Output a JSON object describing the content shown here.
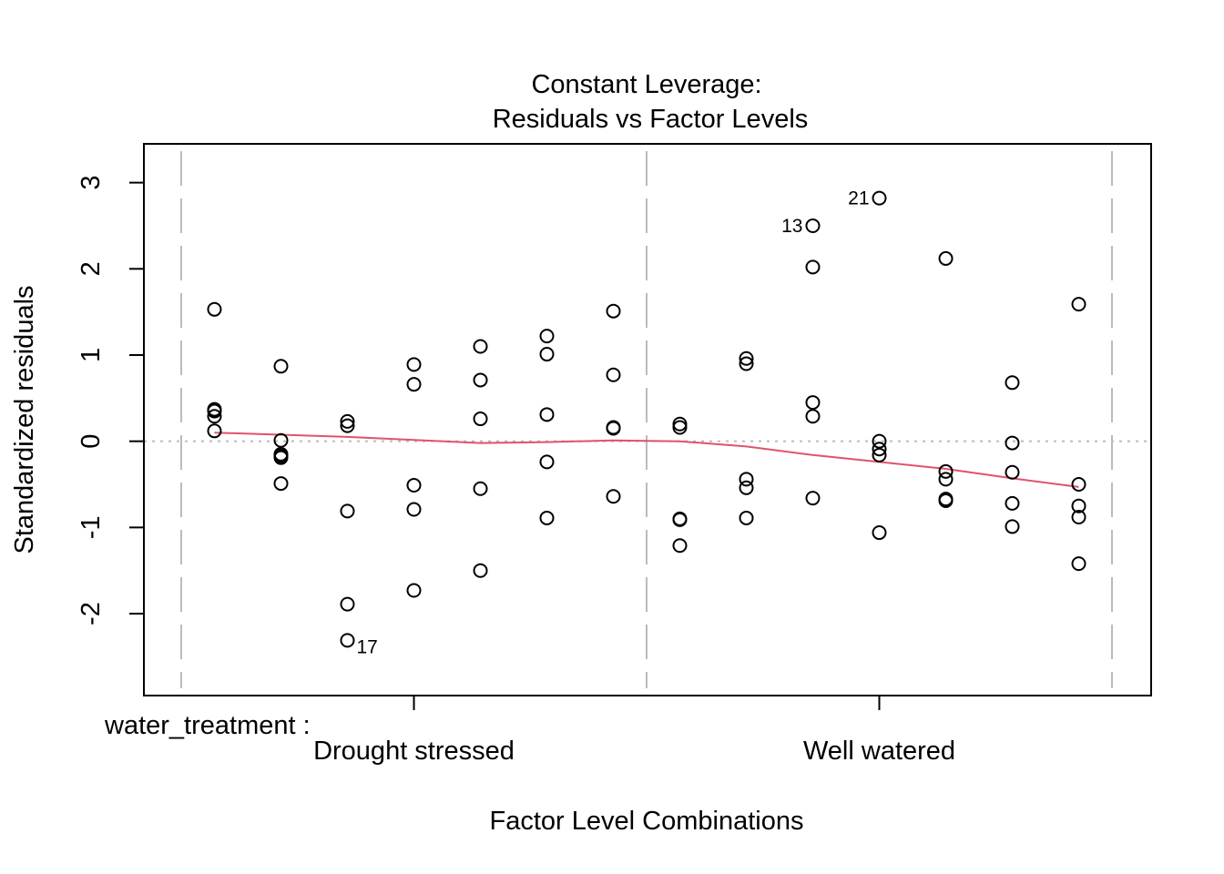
{
  "chart_data": {
    "type": "scatter",
    "title_line1": "Constant Leverage:",
    "title_line2": "Residuals vs Factor Levels",
    "xlabel": "Factor Level Combinations",
    "ylabel": "Standardized residuals",
    "factor_name": "water_treatment :",
    "ylim": [
      -2.95,
      3.45
    ],
    "y_ticks": [
      {
        "value": -2,
        "label": "-2"
      },
      {
        "value": -1,
        "label": "-1"
      },
      {
        "value": 0,
        "label": "0"
      },
      {
        "value": 1,
        "label": "1"
      },
      {
        "value": 2,
        "label": "2"
      },
      {
        "value": 3,
        "label": "3"
      }
    ],
    "factor_levels": [
      {
        "label": "Drought stressed"
      },
      {
        "label": "Well watered"
      }
    ],
    "groups": [
      {
        "level": 0,
        "position": 0.0714,
        "values": [
          1.53,
          0.37,
          0.35,
          0.29,
          0.12
        ]
      },
      {
        "level": 0,
        "position": 0.2143,
        "values": [
          0.87,
          0.01,
          -0.15,
          -0.17,
          -0.19,
          -0.49
        ]
      },
      {
        "level": 0,
        "position": 0.3571,
        "values": [
          0.23,
          0.18,
          -0.81,
          -1.89,
          -2.31
        ]
      },
      {
        "level": 0,
        "position": 0.5,
        "values": [
          0.89,
          0.66,
          -0.51,
          -0.79,
          -1.73
        ]
      },
      {
        "level": 0,
        "position": 0.6429,
        "values": [
          1.1,
          0.71,
          0.26,
          -0.55,
          -1.5
        ]
      },
      {
        "level": 0,
        "position": 0.7857,
        "values": [
          1.22,
          1.01,
          0.31,
          -0.24,
          -0.89
        ]
      },
      {
        "level": 0,
        "position": 0.9286,
        "values": [
          1.51,
          0.77,
          0.16,
          0.15,
          -0.64
        ]
      },
      {
        "level": 1,
        "position": 0.0714,
        "values": [
          0.2,
          0.16,
          -0.9,
          -0.91,
          -1.21
        ]
      },
      {
        "level": 1,
        "position": 0.2143,
        "values": [
          0.96,
          0.9,
          -0.44,
          -0.54,
          -0.89
        ]
      },
      {
        "level": 1,
        "position": 0.3571,
        "values": [
          2.5,
          2.02,
          0.45,
          0.29,
          -0.66
        ]
      },
      {
        "level": 1,
        "position": 0.5,
        "values": [
          2.82,
          0.0,
          -0.09,
          -0.16,
          -1.06
        ]
      },
      {
        "level": 1,
        "position": 0.6429,
        "values": [
          2.12,
          -0.35,
          -0.44,
          -0.67,
          -0.69
        ]
      },
      {
        "level": 1,
        "position": 0.7857,
        "values": [
          0.68,
          -0.02,
          -0.36,
          -0.72,
          -0.99
        ]
      },
      {
        "level": 1,
        "position": 0.9286,
        "values": [
          1.59,
          -0.5,
          -0.75,
          -0.88,
          -1.42
        ]
      }
    ],
    "point_labels": [
      {
        "text": "21",
        "level": 1,
        "position": 0.5,
        "y": 2.82,
        "side": "left"
      },
      {
        "text": "13",
        "level": 1,
        "position": 0.3571,
        "y": 2.5,
        "side": "left"
      },
      {
        "text": "17",
        "level": 0,
        "position": 0.3571,
        "y": -2.31,
        "side": "right"
      }
    ],
    "smooth_line": {
      "color": "#DF536B",
      "points": [
        {
          "level": 0,
          "position": 0.0714,
          "y": 0.1
        },
        {
          "level": 0,
          "position": 0.3571,
          "y": 0.05
        },
        {
          "level": 0,
          "position": 0.6429,
          "y": -0.02
        },
        {
          "level": 0,
          "position": 0.7857,
          "y": -0.01
        },
        {
          "level": 0,
          "position": 0.9286,
          "y": 0.01
        },
        {
          "level": 1,
          "position": 0.0714,
          "y": 0.0
        },
        {
          "level": 1,
          "position": 0.2143,
          "y": -0.06
        },
        {
          "level": 1,
          "position": 0.3571,
          "y": -0.16
        },
        {
          "level": 1,
          "position": 0.5,
          "y": -0.24
        },
        {
          "level": 1,
          "position": 0.6429,
          "y": -0.32
        },
        {
          "level": 1,
          "position": 0.7857,
          "y": -0.43
        },
        {
          "level": 1,
          "position": 0.9286,
          "y": -0.53
        }
      ]
    },
    "zero_line_color": "#bbbbbb",
    "separator_color": "#bbbbbb"
  }
}
